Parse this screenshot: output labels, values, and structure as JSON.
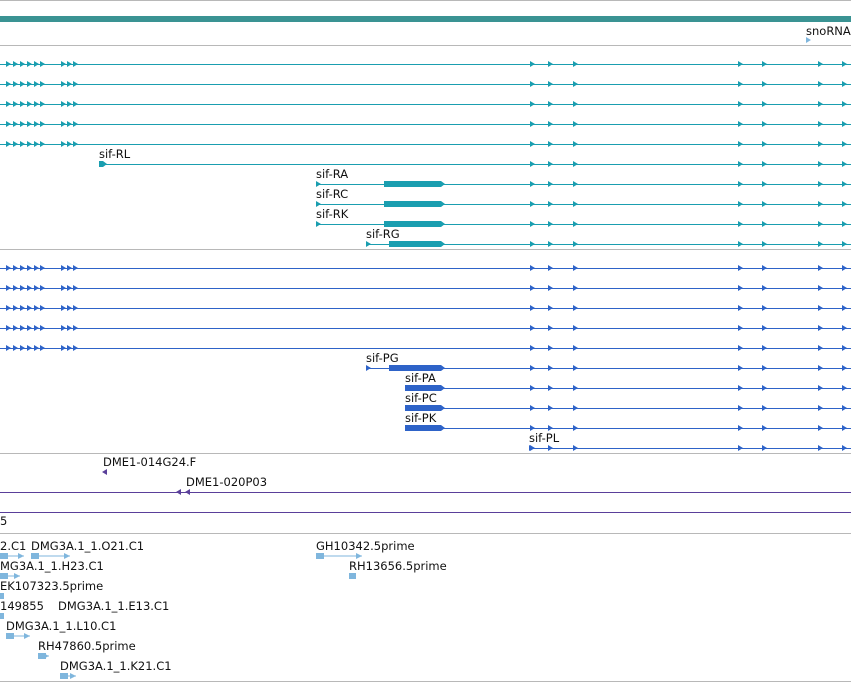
{
  "colors": {
    "teal": "#1a9eb0",
    "teal_bar": "#3a9393",
    "blue": "#2e63c8",
    "purple": "#5a3f9a",
    "light_blue": "#7fb6dd",
    "separator": "#b8b8b8"
  },
  "tracks": {
    "snoRNA": {
      "label": "snoRNA"
    },
    "transcripts_a": [
      {
        "label": ""
      },
      {
        "label": ""
      },
      {
        "label": ""
      },
      {
        "label": ""
      },
      {
        "label": ""
      },
      {
        "label": "sif-RL"
      },
      {
        "label": "sif-RA"
      },
      {
        "label": "sif-RC"
      },
      {
        "label": "sif-RK"
      },
      {
        "label": "sif-RG"
      }
    ],
    "transcripts_b": [
      {
        "label": ""
      },
      {
        "label": ""
      },
      {
        "label": ""
      },
      {
        "label": ""
      },
      {
        "label": ""
      },
      {
        "label": "sif-PG"
      },
      {
        "label": "sif-PA"
      },
      {
        "label": "sif-PC"
      },
      {
        "label": "sif-PK"
      },
      {
        "label": "sif-PL"
      }
    ],
    "clones": [
      {
        "label": "DME1-014G24.F"
      },
      {
        "label": "DME1-020P03"
      }
    ],
    "partial_label": "5",
    "ests": [
      {
        "label": "2.C1"
      },
      {
        "label": "DMG3A.1_1.O21.C1"
      },
      {
        "label": "GH10342.5prime"
      },
      {
        "label": "MG3A.1_1.H23.C1"
      },
      {
        "label": "RH13656.5prime"
      },
      {
        "label": "EK107323.5prime"
      },
      {
        "label": "149855"
      },
      {
        "label": "DMG3A.1_1.E13.C1"
      },
      {
        "label": "DMG3A.1_1.L10.C1"
      },
      {
        "label": "RH47860.5prime"
      },
      {
        "label": "DMG3A.1_1.K21.C1"
      }
    ]
  }
}
